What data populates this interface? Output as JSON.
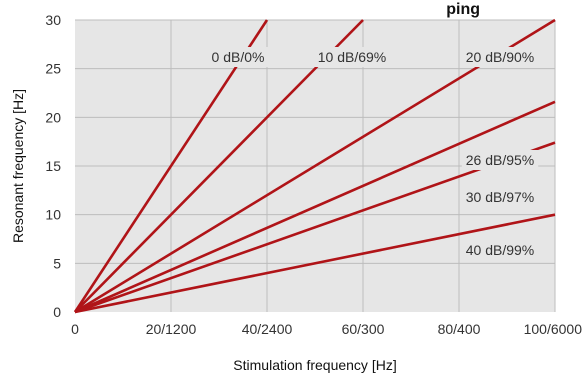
{
  "chart_data": {
    "type": "line",
    "title": "ping",
    "xlabel": "Stimulation frequency [Hz]",
    "ylabel": "Resonant frequency [Hz]",
    "xlim": [
      0,
      100
    ],
    "ylim": [
      0,
      30
    ],
    "x_ticks": [
      0,
      20,
      40,
      60,
      80,
      100
    ],
    "x_tick_labels": [
      "0",
      "20/1200",
      "40/2400",
      "60/300",
      "80/400",
      "100/6000"
    ],
    "y_ticks": [
      0,
      5,
      10,
      15,
      20,
      25,
      30
    ],
    "y_tick_labels": [
      "0",
      "5",
      "10",
      "15",
      "20",
      "25",
      "30"
    ],
    "grid": true,
    "background_color": "#e6e6e6",
    "line_color": "#b01418",
    "series": [
      {
        "name": "0 dB/0%",
        "x": [
          0,
          40
        ],
        "y": [
          0,
          30
        ]
      },
      {
        "name": "10 dB/69%",
        "x": [
          0,
          60
        ],
        "y": [
          0,
          30
        ]
      },
      {
        "name": "20 dB/90%",
        "x": [
          0,
          100
        ],
        "y": [
          0,
          30
        ]
      },
      {
        "name": "26 dB/95%",
        "x": [
          0,
          100
        ],
        "y": [
          0,
          21.6
        ]
      },
      {
        "name": "30 dB/97%",
        "x": [
          0,
          100
        ],
        "y": [
          0,
          17.4
        ]
      },
      {
        "name": "40 dB/99%",
        "x": [
          0,
          100
        ],
        "y": [
          0,
          10
        ]
      }
    ]
  }
}
